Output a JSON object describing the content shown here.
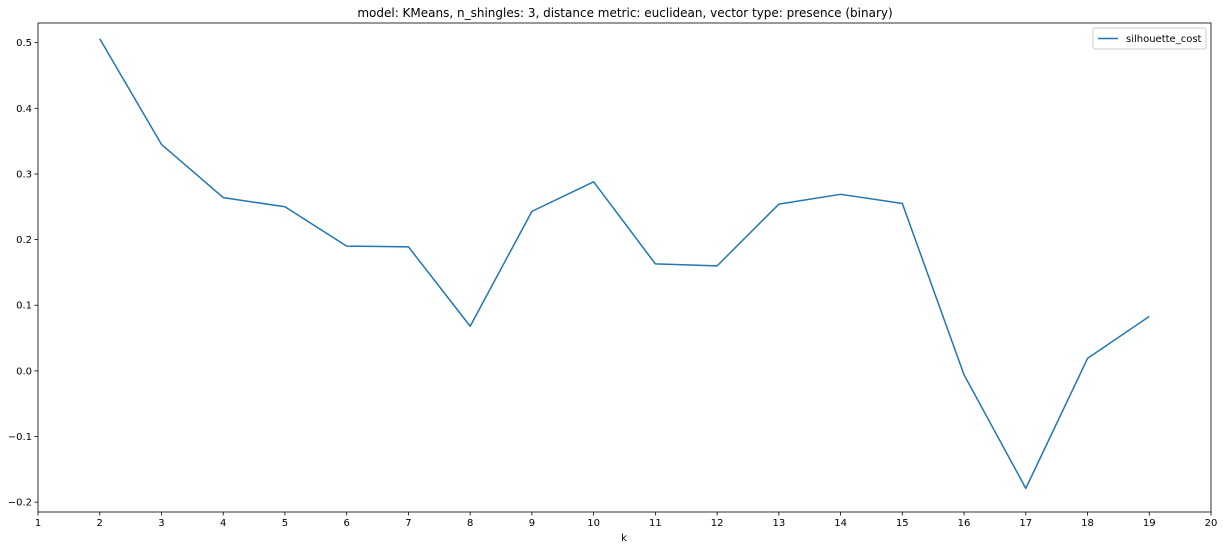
{
  "chart_data": {
    "type": "line",
    "title": "model: KMeans, n_shingles: 3, distance metric: euclidean, vector type: presence (binary)",
    "xlabel": "k",
    "ylabel": "",
    "xlim": [
      1,
      20
    ],
    "ylim": [
      -0.215,
      0.53
    ],
    "xticks": [
      1,
      2,
      3,
      4,
      5,
      6,
      7,
      8,
      9,
      10,
      11,
      12,
      13,
      14,
      15,
      16,
      17,
      18,
      19,
      20
    ],
    "yticks": [
      -0.2,
      -0.1,
      0.0,
      0.1,
      0.2,
      0.3,
      0.4,
      0.5
    ],
    "ytick_labels": [
      "−0.2",
      "−0.1",
      "0.0",
      "0.1",
      "0.2",
      "0.3",
      "0.4",
      "0.5"
    ],
    "grid": false,
    "legend_position": "top-right",
    "colors": {
      "series": "#1f77b4",
      "axis": "#000000"
    },
    "series": [
      {
        "name": "silhouette_cost",
        "x": [
          2,
          3,
          4,
          5,
          6,
          7,
          8,
          9,
          10,
          11,
          12,
          13,
          14,
          15,
          16,
          17,
          18,
          19
        ],
        "values": [
          0.506,
          0.345,
          0.264,
          0.25,
          0.19,
          0.189,
          0.068,
          0.243,
          0.288,
          0.163,
          0.16,
          0.254,
          0.269,
          0.255,
          -0.006,
          -0.179,
          0.019,
          0.083
        ]
      }
    ]
  }
}
